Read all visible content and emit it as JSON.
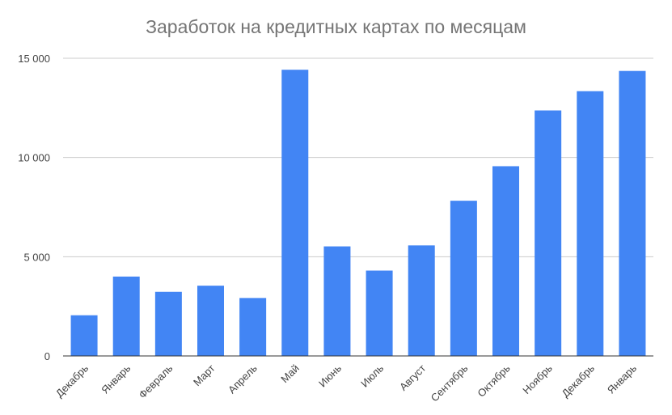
{
  "chart_data": {
    "type": "bar",
    "title": "Заработок на кредитных картах по месяцам",
    "xlabel": "",
    "ylabel": "",
    "categories": [
      "Декабрь",
      "Январь",
      "Февраль",
      "Март",
      "Апрель",
      "Май",
      "Июнь",
      "Июль",
      "Август",
      "Сентябрь",
      "Октябрь",
      "Ноябрь",
      "Декабрь",
      "Январь"
    ],
    "values": [
      2050,
      4000,
      3230,
      3540,
      2920,
      14420,
      5520,
      4300,
      5570,
      7820,
      9560,
      12370,
      13340,
      14360
    ],
    "ylim": [
      0,
      15000
    ],
    "yticks": [
      0,
      5000,
      10000,
      15000
    ],
    "ytick_labels": [
      "0",
      "5 000",
      "10 000",
      "15 000"
    ],
    "grid": true,
    "bar_color": "#4285f4",
    "grid_color": "#cccccc",
    "axis_color": "#333333",
    "legend": "none"
  }
}
